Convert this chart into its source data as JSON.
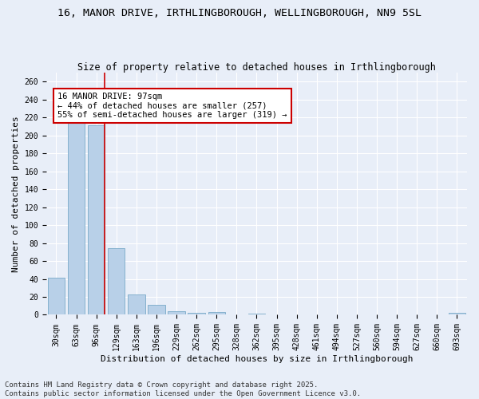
{
  "title": "16, MANOR DRIVE, IRTHLINGBOROUGH, WELLINGBOROUGH, NN9 5SL",
  "subtitle": "Size of property relative to detached houses in Irthlingborough",
  "xlabel": "Distribution of detached houses by size in Irthlingborough",
  "ylabel": "Number of detached properties",
  "categories": [
    "30sqm",
    "63sqm",
    "96sqm",
    "129sqm",
    "163sqm",
    "196sqm",
    "229sqm",
    "262sqm",
    "295sqm",
    "328sqm",
    "362sqm",
    "395sqm",
    "428sqm",
    "461sqm",
    "494sqm",
    "527sqm",
    "560sqm",
    "594sqm",
    "627sqm",
    "660sqm",
    "693sqm"
  ],
  "values": [
    41,
    216,
    211,
    74,
    23,
    11,
    4,
    2,
    3,
    0,
    1,
    0,
    0,
    0,
    0,
    0,
    0,
    0,
    0,
    0,
    2
  ],
  "bar_color": "#b8d0e8",
  "bar_edge_color": "#7aaac8",
  "property_line_color": "#cc0000",
  "annotation_text": "16 MANOR DRIVE: 97sqm\n← 44% of detached houses are smaller (257)\n55% of semi-detached houses are larger (319) →",
  "annotation_box_color": "#ffffff",
  "annotation_box_edge_color": "#cc0000",
  "ylim": [
    0,
    270
  ],
  "yticks": [
    0,
    20,
    40,
    60,
    80,
    100,
    120,
    140,
    160,
    180,
    200,
    220,
    240,
    260
  ],
  "background_color": "#e8eef8",
  "grid_color": "#ffffff",
  "footnote": "Contains HM Land Registry data © Crown copyright and database right 2025.\nContains public sector information licensed under the Open Government Licence v3.0.",
  "title_fontsize": 9.5,
  "subtitle_fontsize": 8.5,
  "xlabel_fontsize": 8,
  "ylabel_fontsize": 8,
  "tick_fontsize": 7,
  "annotation_fontsize": 7.5,
  "footnote_fontsize": 6.5
}
